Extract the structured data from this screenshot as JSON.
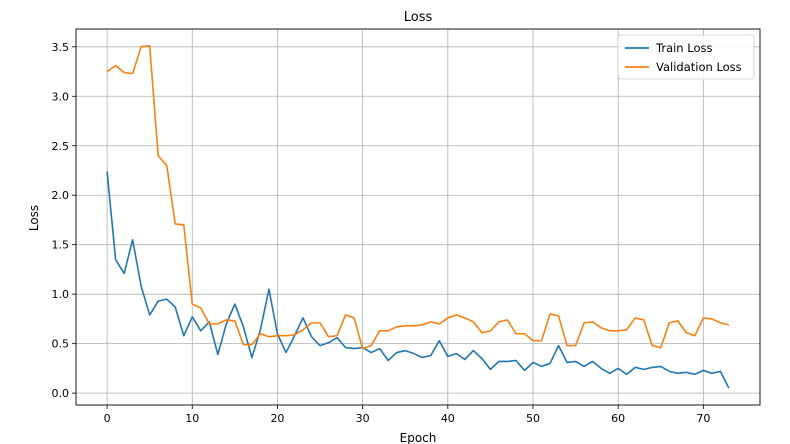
{
  "chart_data": {
    "type": "line",
    "title": "Loss",
    "xlabel": "Epoch",
    "ylabel": "Loss",
    "xlim": [
      -3.65,
      76.65
    ],
    "ylim": [
      -0.12,
      3.68
    ],
    "xticks": [
      0,
      10,
      20,
      30,
      40,
      50,
      60,
      70
    ],
    "yticks": [
      0.0,
      0.5,
      1.0,
      1.5,
      2.0,
      2.5,
      3.0,
      3.5
    ],
    "ytick_labels": [
      "0.0",
      "0.5",
      "1.0",
      "1.5",
      "2.0",
      "2.5",
      "3.0",
      "3.5"
    ],
    "grid": true,
    "legend_position": "top-right",
    "x": [
      0,
      1,
      2,
      3,
      4,
      5,
      6,
      7,
      8,
      9,
      10,
      11,
      12,
      13,
      14,
      15,
      16,
      17,
      18,
      19,
      20,
      21,
      22,
      23,
      24,
      25,
      26,
      27,
      28,
      29,
      30,
      31,
      32,
      33,
      34,
      35,
      36,
      37,
      38,
      39,
      40,
      41,
      42,
      43,
      44,
      45,
      46,
      47,
      48,
      49,
      50,
      51,
      52,
      53,
      54,
      55,
      56,
      57,
      58,
      59,
      60,
      61,
      62,
      63,
      64,
      65,
      66,
      67,
      68,
      69,
      70,
      71,
      72,
      73
    ],
    "series": [
      {
        "name": "Train Loss",
        "color": "#1f77b4",
        "values": [
          2.24,
          1.35,
          1.21,
          1.55,
          1.08,
          0.79,
          0.93,
          0.95,
          0.87,
          0.58,
          0.77,
          0.63,
          0.72,
          0.39,
          0.7,
          0.9,
          0.67,
          0.36,
          0.64,
          1.05,
          0.6,
          0.41,
          0.58,
          0.76,
          0.57,
          0.48,
          0.51,
          0.56,
          0.46,
          0.45,
          0.46,
          0.41,
          0.45,
          0.33,
          0.41,
          0.43,
          0.4,
          0.36,
          0.38,
          0.53,
          0.37,
          0.4,
          0.34,
          0.43,
          0.35,
          0.24,
          0.32,
          0.32,
          0.33,
          0.23,
          0.31,
          0.27,
          0.3,
          0.48,
          0.31,
          0.32,
          0.27,
          0.32,
          0.25,
          0.2,
          0.25,
          0.19,
          0.26,
          0.24,
          0.26,
          0.27,
          0.22,
          0.2,
          0.21,
          0.19,
          0.23,
          0.2,
          0.22,
          0.05
        ]
      },
      {
        "name": "Validation Loss",
        "color": "#ff7f0e",
        "values": [
          3.25,
          3.31,
          3.24,
          3.23,
          3.5,
          3.51,
          2.4,
          2.3,
          1.71,
          1.7,
          0.9,
          0.86,
          0.7,
          0.7,
          0.74,
          0.73,
          0.49,
          0.49,
          0.6,
          0.57,
          0.58,
          0.58,
          0.59,
          0.64,
          0.71,
          0.71,
          0.57,
          0.58,
          0.79,
          0.76,
          0.45,
          0.48,
          0.63,
          0.63,
          0.67,
          0.68,
          0.68,
          0.69,
          0.72,
          0.7,
          0.76,
          0.79,
          0.76,
          0.72,
          0.61,
          0.63,
          0.72,
          0.74,
          0.6,
          0.6,
          0.53,
          0.53,
          0.8,
          0.78,
          0.48,
          0.48,
          0.71,
          0.72,
          0.66,
          0.63,
          0.63,
          0.64,
          0.76,
          0.74,
          0.48,
          0.46,
          0.71,
          0.73,
          0.61,
          0.58,
          0.76,
          0.75,
          0.71,
          0.69
        ]
      }
    ]
  }
}
